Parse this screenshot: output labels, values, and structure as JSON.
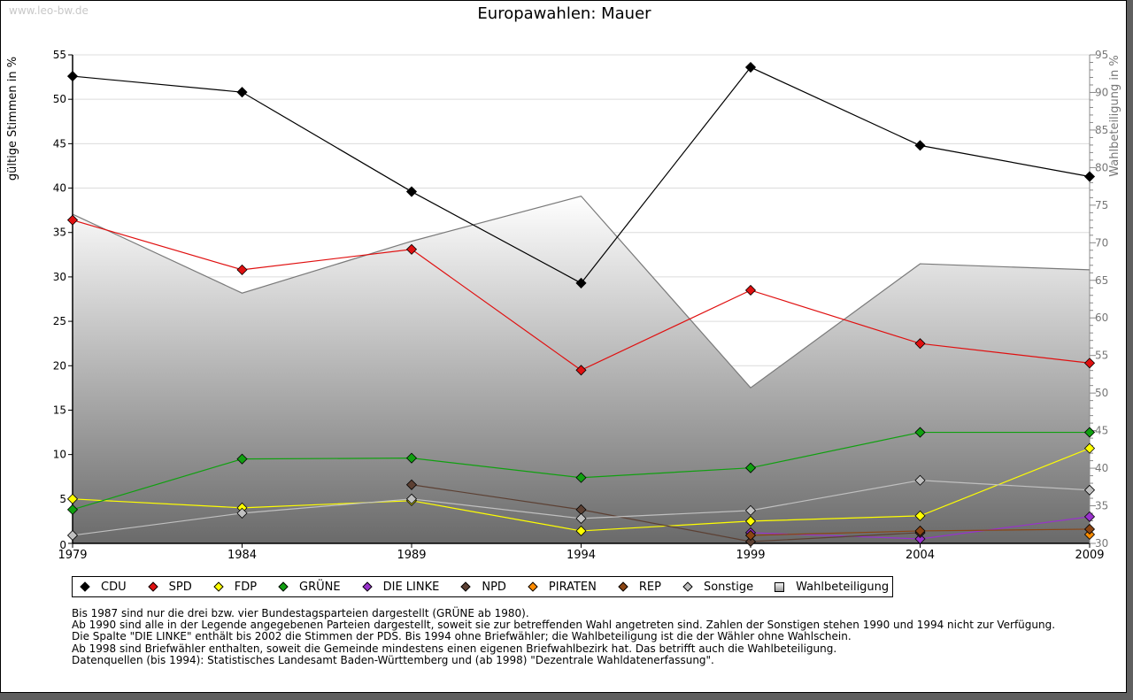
{
  "watermark": "www.leo-bw.de",
  "title": "Europawahlen: Mauer",
  "chart_data": {
    "type": "line",
    "title": "Europawahlen: Mauer",
    "xlabel": "",
    "ylabel": "gültige Stimmen in %",
    "ylabel_right": "Wahlbeteiligung in %",
    "x": [
      1979,
      1984,
      1989,
      1994,
      1999,
      2004,
      2009
    ],
    "xticks": [
      "1979",
      "1984",
      "1989",
      "1994",
      "1999",
      "2004",
      "2009"
    ],
    "ylim": [
      0,
      55
    ],
    "yticks": [
      0,
      5,
      10,
      15,
      20,
      25,
      30,
      35,
      40,
      45,
      50,
      55
    ],
    "ylim_right": [
      30,
      95
    ],
    "yticks_right": [
      30,
      35,
      40,
      45,
      50,
      55,
      60,
      65,
      70,
      75,
      80,
      85,
      90,
      95
    ],
    "grid": true,
    "legend_position": "bottom",
    "series": [
      {
        "name": "CDU",
        "color": "#000000",
        "values": [
          52.6,
          50.8,
          39.6,
          29.3,
          53.6,
          44.8,
          41.3
        ]
      },
      {
        "name": "SPD",
        "color": "#e01010",
        "values": [
          36.4,
          30.8,
          33.1,
          19.5,
          28.5,
          22.5,
          20.3
        ]
      },
      {
        "name": "FDP",
        "color": "#ffff00",
        "values": [
          5.0,
          4.0,
          4.8,
          1.4,
          2.5,
          3.1,
          10.7
        ]
      },
      {
        "name": "GRÜNE",
        "color": "#10a010",
        "values": [
          3.8,
          9.5,
          9.6,
          7.4,
          8.5,
          12.5,
          12.5
        ]
      },
      {
        "name": "DIE LINKE",
        "color": "#9932cc",
        "values": [
          null,
          null,
          null,
          null,
          1.2,
          0.5,
          3.0
        ]
      },
      {
        "name": "NPD",
        "color": "#5c4033",
        "values": [
          null,
          null,
          6.6,
          3.8,
          0.2,
          1.2,
          null
        ]
      },
      {
        "name": "PIRATEN",
        "color": "#ff8c00",
        "values": [
          null,
          null,
          null,
          null,
          null,
          null,
          1.0
        ]
      },
      {
        "name": "REP",
        "color": "#8b4513",
        "values": [
          null,
          null,
          null,
          null,
          0.9,
          1.4,
          1.6
        ]
      },
      {
        "name": "Sonstige",
        "color": "#c0c0c0",
        "values": [
          0.9,
          3.4,
          5.0,
          2.8,
          3.7,
          7.1,
          6.0
        ]
      }
    ],
    "area_series": {
      "name": "Wahlbeteiligung",
      "axis": "right",
      "values": [
        73.8,
        63.3,
        70.2,
        76.2,
        50.7,
        67.2,
        66.4
      ]
    }
  },
  "legend": [
    {
      "label": "CDU",
      "color": "#000000",
      "kind": "dot"
    },
    {
      "label": "SPD",
      "color": "#e01010",
      "kind": "dot"
    },
    {
      "label": "FDP",
      "color": "#ffff00",
      "kind": "dot"
    },
    {
      "label": "GRÜNE",
      "color": "#10a010",
      "kind": "dot"
    },
    {
      "label": "DIE LINKE",
      "color": "#9932cc",
      "kind": "dot"
    },
    {
      "label": "NPD",
      "color": "#5c4033",
      "kind": "dot"
    },
    {
      "label": "PIRATEN",
      "color": "#ff8c00",
      "kind": "dot"
    },
    {
      "label": "REP",
      "color": "#8b4513",
      "kind": "dot"
    },
    {
      "label": "Sonstige",
      "color": "#c0c0c0",
      "kind": "dot"
    },
    {
      "label": "Wahlbeteiligung",
      "color": "#aaaaaa",
      "kind": "box"
    }
  ],
  "notes": [
    "Bis 1987 sind nur die drei bzw. vier Bundestagsparteien dargestellt (GRÜNE ab 1980).",
    "Ab 1990 sind alle in der Legende angegebenen Parteien dargestellt, soweit sie zur betreffenden Wahl angetreten sind. Zahlen der Sonstigen stehen 1990 und 1994 nicht zur Verfügung.",
    "Die Spalte \"DIE LINKE\" enthält bis 2002 die Stimmen der PDS. Bis 1994 ohne Briefwähler; die Wahlbeteiligung ist die der Wähler ohne Wahlschein.",
    "Ab 1998 sind Briefwähler enthalten, soweit die Gemeinde mindestens einen eigenen Briefwahlbezirk hat. Das betrifft auch die Wahlbeteiligung.",
    "",
    "Datenquellen (bis 1994): Statistisches Landesamt Baden-Württemberg und (ab 1998) \"Dezentrale Wahldatenerfassung\"."
  ]
}
